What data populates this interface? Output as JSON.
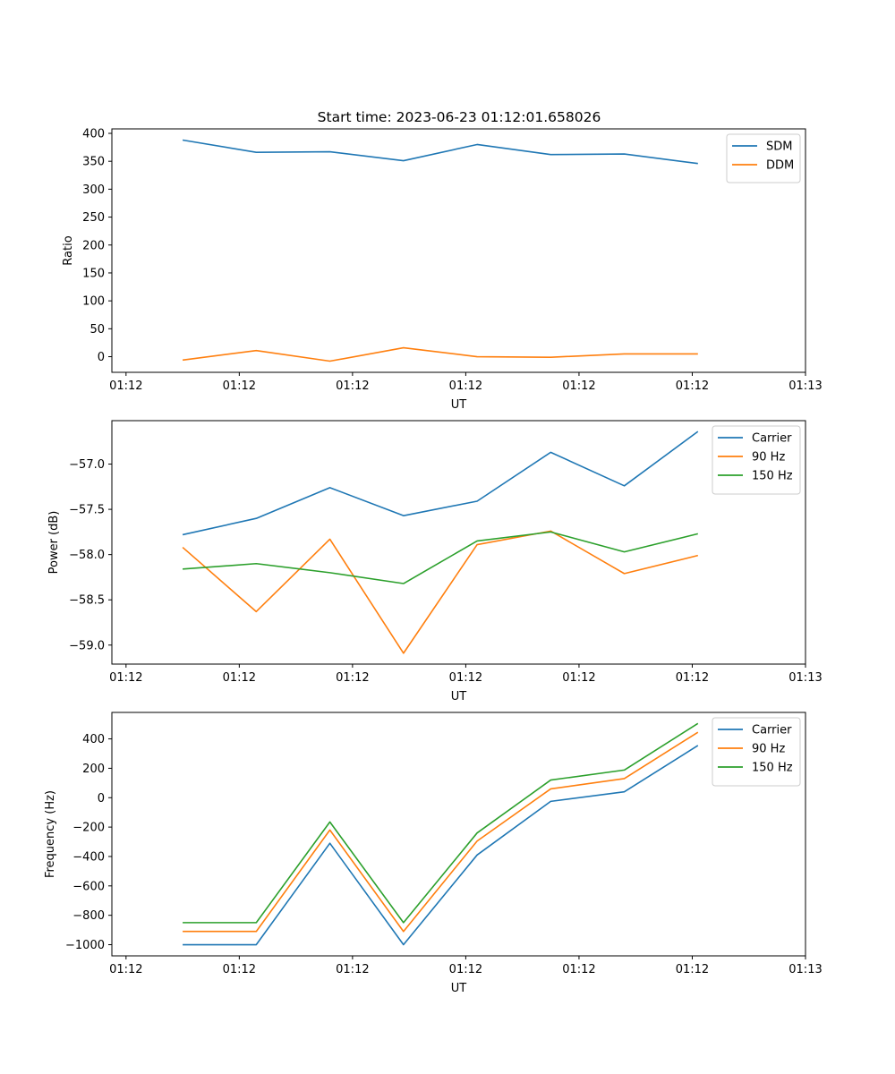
{
  "figure": {
    "title": "Start time: 2023-06-23 01:12:01.658026"
  },
  "chart_data": [
    {
      "type": "line",
      "xlabel": "UT",
      "ylabel": "Ratio",
      "x_tick_labels": [
        "01:12",
        "01:12",
        "01:12",
        "01:12",
        "01:12",
        "01:12",
        "01:13"
      ],
      "x_tick_values": [
        0,
        1,
        2,
        3,
        4,
        5,
        6
      ],
      "xlim": [
        -0.125,
        6
      ],
      "x": [
        0.5,
        1.15,
        1.8,
        2.45,
        3.1,
        3.75,
        4.4,
        5.05
      ],
      "ylim": [
        -28,
        408
      ],
      "y_ticks": [
        0,
        50,
        100,
        150,
        200,
        250,
        300,
        350,
        400
      ],
      "y_tick_labels": [
        "0",
        "50",
        "100",
        "150",
        "200",
        "250",
        "300",
        "350",
        "400"
      ],
      "legend_position": "upper right",
      "grid": false,
      "series": [
        {
          "name": "SDM",
          "color": "#1f77b4",
          "values": [
            388,
            366,
            367,
            351,
            380,
            362,
            363,
            346
          ]
        },
        {
          "name": "DDM",
          "color": "#ff7f0e",
          "values": [
            -6,
            11,
            -8,
            16,
            0,
            -1,
            5,
            5
          ]
        }
      ]
    },
    {
      "type": "line",
      "xlabel": "UT",
      "ylabel": "Power (dB)",
      "x_tick_labels": [
        "01:12",
        "01:12",
        "01:12",
        "01:12",
        "01:12",
        "01:12",
        "01:13"
      ],
      "x_tick_values": [
        0,
        1,
        2,
        3,
        4,
        5,
        6
      ],
      "xlim": [
        -0.125,
        6
      ],
      "x": [
        0.5,
        1.15,
        1.8,
        2.45,
        3.1,
        3.75,
        4.4,
        5.05
      ],
      "ylim": [
        -59.21,
        -56.52
      ],
      "y_ticks": [
        -59.0,
        -58.5,
        -58.0,
        -57.5,
        -57.0
      ],
      "y_tick_labels": [
        "−59.0",
        "−58.5",
        "−58.0",
        "−57.5",
        "−57.0"
      ],
      "legend_position": "upper right",
      "grid": false,
      "series": [
        {
          "name": "Carrier",
          "color": "#1f77b4",
          "values": [
            -57.78,
            -57.6,
            -57.26,
            -57.57,
            -57.41,
            -56.87,
            -57.24,
            -56.64
          ]
        },
        {
          "name": "90 Hz",
          "color": "#ff7f0e",
          "values": [
            -57.92,
            -58.63,
            -57.83,
            -59.09,
            -57.89,
            -57.74,
            -58.21,
            -58.01
          ]
        },
        {
          "name": "150 Hz",
          "color": "#2ca02c",
          "values": [
            -58.16,
            -58.1,
            -58.2,
            -58.32,
            -57.85,
            -57.75,
            -57.97,
            -57.77
          ]
        }
      ]
    },
    {
      "type": "line",
      "xlabel": "UT",
      "ylabel": "Frequency (Hz)",
      "x_tick_labels": [
        "01:12",
        "01:12",
        "01:12",
        "01:12",
        "01:12",
        "01:12",
        "01:13"
      ],
      "x_tick_values": [
        0,
        1,
        2,
        3,
        4,
        5,
        6
      ],
      "xlim": [
        -0.125,
        6
      ],
      "x": [
        0.5,
        1.15,
        1.8,
        2.45,
        3.1,
        3.75,
        4.4,
        5.05
      ],
      "ylim": [
        -1076,
        580
      ],
      "y_ticks": [
        -1000,
        -800,
        -600,
        -400,
        -200,
        0,
        200,
        400
      ],
      "y_tick_labels": [
        "−1000",
        "−800",
        "−600",
        "−400",
        "−200",
        "0",
        "200",
        "400"
      ],
      "legend_position": "upper right",
      "grid": false,
      "series": [
        {
          "name": "Carrier",
          "color": "#1f77b4",
          "values": [
            -1000,
            -1000,
            -310,
            -1000,
            -390,
            -25,
            40,
            355
          ]
        },
        {
          "name": "90 Hz",
          "color": "#ff7f0e",
          "values": [
            -910,
            -910,
            -220,
            -910,
            -295,
            60,
            130,
            445
          ]
        },
        {
          "name": "150 Hz",
          "color": "#2ca02c",
          "values": [
            -850,
            -850,
            -165,
            -850,
            -240,
            120,
            188,
            505
          ]
        }
      ]
    }
  ]
}
